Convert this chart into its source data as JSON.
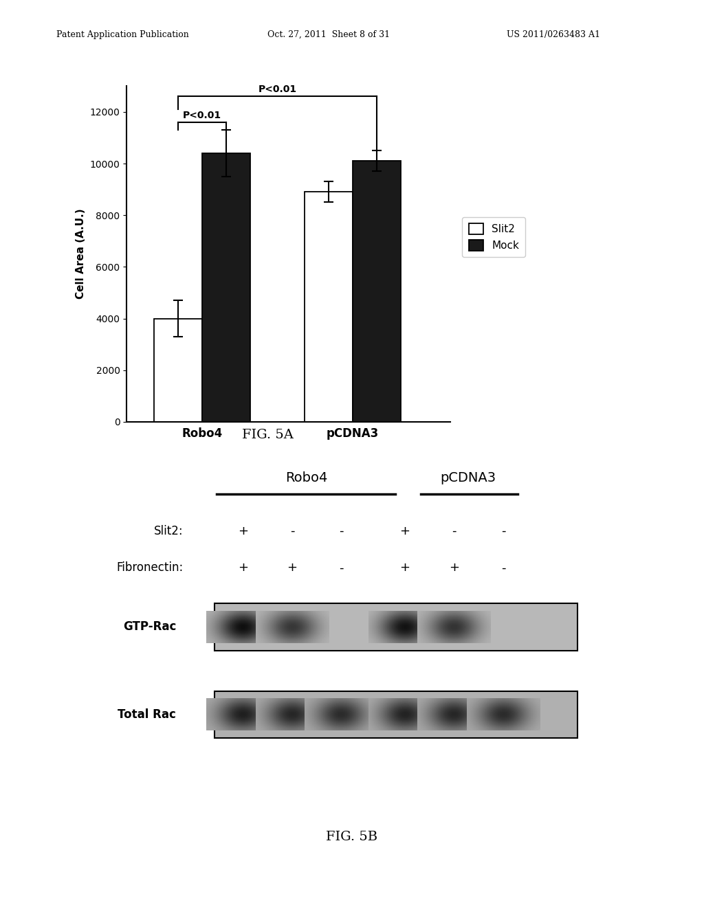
{
  "header_left": "Patent Application Publication",
  "header_mid": "Oct. 27, 2011  Sheet 8 of 31",
  "header_right": "US 2011/0263483 A1",
  "fig5a": {
    "groups": [
      "Robo4",
      "pCDNA3"
    ],
    "slit2_values": [
      4000,
      8900
    ],
    "mock_values": [
      10400,
      10100
    ],
    "slit2_errors": [
      700,
      400
    ],
    "mock_errors": [
      900,
      400
    ],
    "slit2_color": "#ffffff",
    "mock_color": "#1a1a1a",
    "bar_edge_color": "#000000",
    "bar_width": 0.32,
    "ylabel": "Cell Area (A.U.)",
    "ylim": [
      0,
      13000
    ],
    "yticks": [
      0,
      2000,
      4000,
      6000,
      8000,
      10000,
      12000
    ],
    "title": "FIG. 5A"
  },
  "fig5b": {
    "title": "FIG. 5B",
    "robo4_label": "Robo4",
    "pcdna3_label": "pCDNA3",
    "slit2_label": "Slit2:",
    "fibronectin_label": "Fibronectin:",
    "slit2_signs": [
      "+",
      "-",
      "-",
      "+",
      "-",
      "-"
    ],
    "fibronectin_signs": [
      "+",
      "+",
      "-",
      "+",
      "+",
      "-"
    ]
  }
}
